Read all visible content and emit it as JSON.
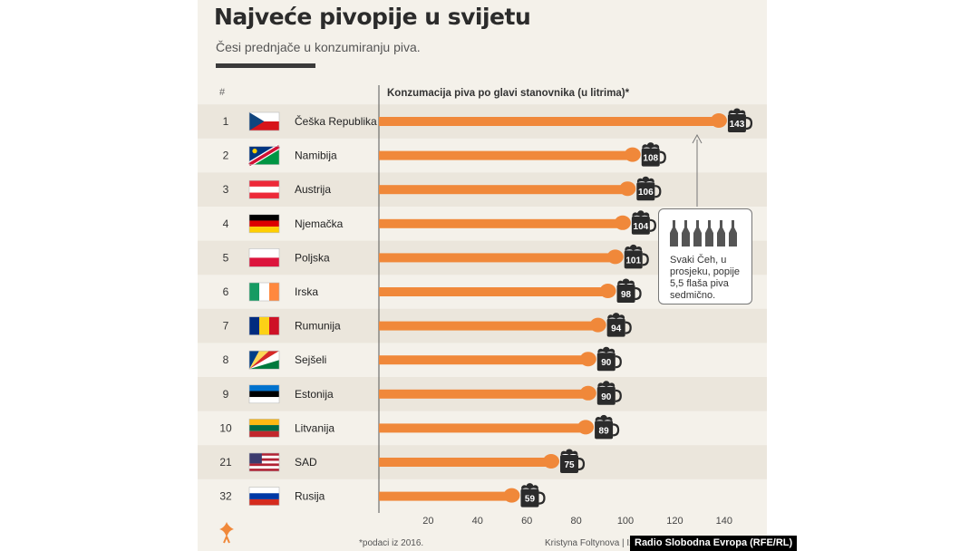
{
  "header": {
    "title": "Najveće pivopije u svijetu",
    "subtitle": "Česi prednjače u konzumiranju piva.",
    "rank_label": "#"
  },
  "note": {
    "text": "Svaki Čeh, u prosjeku, popije 5,5 flaša piva sedmično.",
    "bottle_count": 6
  },
  "footer": {
    "footnote": "*podaci iz 2016.",
    "author": "Kristyna Foltynova | Izv",
    "watermark": "Radio Slobodna Evropa (RFE/RL)"
  },
  "colors": {
    "bar": "#f0883a",
    "mug": "#2b2b2b",
    "background": "#f4f1ea",
    "stripe": "#ebe6dc"
  },
  "chart_data": {
    "type": "bar",
    "orientation": "horizontal",
    "title": "Konzumacija piva po glavi stanovnika (u litrima)*",
    "xlim": [
      0,
      140
    ],
    "xticks": [
      20,
      40,
      60,
      80,
      100,
      120,
      140
    ],
    "rows": [
      {
        "rank": "1",
        "country": "Češka Republika",
        "value": 143,
        "flag": "czech-flag"
      },
      {
        "rank": "2",
        "country": "Namibija",
        "value": 108,
        "flag": "namibia-flag"
      },
      {
        "rank": "3",
        "country": "Austrija",
        "value": 106,
        "flag": "austria-flag"
      },
      {
        "rank": "4",
        "country": "Njemačka",
        "value": 104,
        "flag": "germany-flag"
      },
      {
        "rank": "5",
        "country": "Poljska",
        "value": 101,
        "flag": "poland-flag"
      },
      {
        "rank": "6",
        "country": "Irska",
        "value": 98,
        "flag": "ireland-flag"
      },
      {
        "rank": "7",
        "country": "Rumunija",
        "value": 94,
        "flag": "romania-flag"
      },
      {
        "rank": "8",
        "country": "Sejšeli",
        "value": 90,
        "flag": "seychelles-flag"
      },
      {
        "rank": "9",
        "country": "Estonija",
        "value": 90,
        "flag": "estonia-flag"
      },
      {
        "rank": "10",
        "country": "Litvanija",
        "value": 89,
        "flag": "lithuania-flag"
      },
      {
        "rank": "21",
        "country": "SAD",
        "value": 75,
        "flag": "usa-flag"
      },
      {
        "rank": "32",
        "country": "Rusija",
        "value": 59,
        "flag": "russia-flag"
      }
    ]
  }
}
